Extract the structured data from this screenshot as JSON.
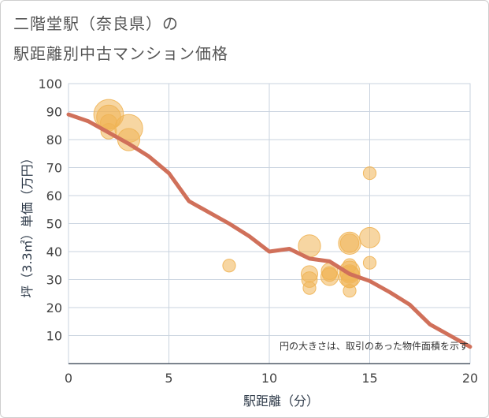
{
  "title_line1": "二階堂駅（奈良県）の",
  "title_line2": "駅距離別中古マンション価格",
  "chart_data": {
    "type": "scatter",
    "title": "二階堂駅（奈良県）の駅距離別中古マンション価格",
    "xlabel": "駅距離（分）",
    "ylabel": "坪（3.3㎡）単価（万円）",
    "xlim": [
      0,
      20
    ],
    "ylim": [
      0,
      100
    ],
    "x_ticks": [
      0,
      5,
      10,
      15,
      20
    ],
    "y_ticks": [
      10,
      20,
      30,
      40,
      50,
      60,
      70,
      80,
      90,
      100
    ],
    "grid": true,
    "annotation": "円の大きさは、取引のあった物件面積を示す",
    "colors": {
      "bubble": "#f0b455",
      "line": "#d0705a",
      "grid": "#c9d3df"
    },
    "points": [
      {
        "x": 2,
        "y": 89,
        "size": 2.4
      },
      {
        "x": 2,
        "y": 88,
        "size": 1.8
      },
      {
        "x": 2,
        "y": 86,
        "size": 1.0
      },
      {
        "x": 2,
        "y": 83,
        "size": 0.9
      },
      {
        "x": 3,
        "y": 84,
        "size": 2.2
      },
      {
        "x": 3,
        "y": 80,
        "size": 1.6
      },
      {
        "x": 8,
        "y": 35,
        "size": 0.6
      },
      {
        "x": 12,
        "y": 42,
        "size": 1.6
      },
      {
        "x": 12,
        "y": 32,
        "size": 1.0
      },
      {
        "x": 12,
        "y": 30,
        "size": 0.9
      },
      {
        "x": 12,
        "y": 27,
        "size": 0.6
      },
      {
        "x": 13,
        "y": 33,
        "size": 1.0
      },
      {
        "x": 13,
        "y": 32,
        "size": 0.8
      },
      {
        "x": 13,
        "y": 31,
        "size": 1.1
      },
      {
        "x": 14,
        "y": 43,
        "size": 1.6
      },
      {
        "x": 14,
        "y": 43,
        "size": 1.2
      },
      {
        "x": 14,
        "y": 35,
        "size": 0.7
      },
      {
        "x": 14,
        "y": 33,
        "size": 1.4
      },
      {
        "x": 14,
        "y": 32,
        "size": 1.2
      },
      {
        "x": 14,
        "y": 31,
        "size": 1.5
      },
      {
        "x": 14,
        "y": 30,
        "size": 1.0
      },
      {
        "x": 14,
        "y": 26,
        "size": 0.6
      },
      {
        "x": 15,
        "y": 68,
        "size": 0.6
      },
      {
        "x": 15,
        "y": 45,
        "size": 1.4
      },
      {
        "x": 15,
        "y": 36,
        "size": 0.6
      }
    ],
    "trend": {
      "x": [
        0,
        1,
        2,
        3,
        4,
        5,
        6,
        7,
        8,
        9,
        10,
        11,
        12,
        13,
        14,
        15,
        16,
        17,
        18,
        19,
        20
      ],
      "y": [
        89,
        86.5,
        82.5,
        78.5,
        74,
        68,
        58,
        54,
        50,
        45.5,
        40,
        41,
        37.5,
        36.5,
        32,
        29.5,
        25.5,
        21,
        14,
        10,
        6
      ]
    }
  }
}
